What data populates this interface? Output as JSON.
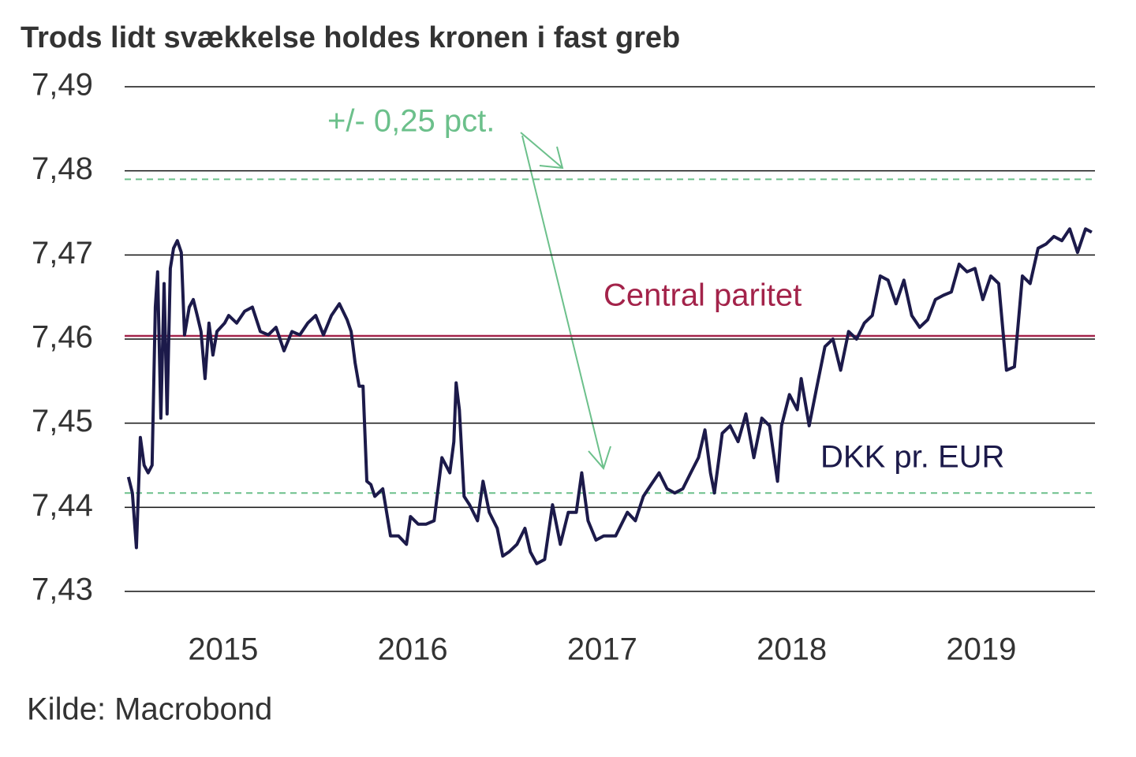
{
  "chart_data": {
    "type": "line",
    "title": "Trods lidt svækkelse holdes kronen i fast greb",
    "source": "Kilde: Macrobond",
    "annotations": [
      "+/- 0,25 pct.",
      "Central paritet"
    ],
    "xlim": [
      2014.48,
      2019.6
    ],
    "xticks": [
      2015,
      2016,
      2017,
      2018,
      2019
    ],
    "ylim": [
      7.43,
      7.49
    ],
    "yticks": [
      {
        "value": 7.43,
        "label": "7,43"
      },
      {
        "value": 7.44,
        "label": "7,44"
      },
      {
        "value": 7.45,
        "label": "7,45"
      },
      {
        "value": 7.46,
        "label": "7,46"
      },
      {
        "value": 7.47,
        "label": "7,47"
      },
      {
        "value": 7.48,
        "label": "7,48"
      },
      {
        "value": 7.49,
        "label": "7,49"
      }
    ],
    "grid": true,
    "reference_lines": [
      {
        "value": 7.46038,
        "color": "#a3234a",
        "style": "solid"
      },
      {
        "value": 7.479,
        "color": "#6cc08b",
        "style": "dashed"
      },
      {
        "value": 7.4417,
        "color": "#6cc08b",
        "style": "dashed"
      }
    ],
    "series": [
      {
        "name": "DKK pr. EUR",
        "color": "#1c1a4a",
        "x": [
          2014.5,
          2014.521,
          2014.542,
          2014.563,
          2014.583,
          2014.604,
          2014.625,
          2014.642,
          2014.654,
          2014.671,
          2014.688,
          2014.704,
          2014.721,
          2014.738,
          2014.758,
          2014.779,
          2014.796,
          2014.821,
          2014.842,
          2014.863,
          2014.883,
          2014.904,
          2014.925,
          2014.946,
          2014.967,
          2015.008,
          2015.029,
          2015.071,
          2015.113,
          2015.154,
          2015.196,
          2015.238,
          2015.279,
          2015.321,
          2015.363,
          2015.404,
          2015.446,
          2015.488,
          2015.529,
          2015.571,
          2015.613,
          2015.654,
          2015.675,
          2015.696,
          2015.717,
          2015.738,
          2015.758,
          2015.779,
          2015.8,
          2015.842,
          2015.883,
          2015.925,
          2015.967,
          2015.988,
          2016.029,
          2016.071,
          2016.113,
          2016.154,
          2016.196,
          2016.217,
          2016.229,
          2016.246,
          2016.271,
          2016.3,
          2016.342,
          2016.371,
          2016.404,
          2016.446,
          2016.475,
          2016.508,
          2016.55,
          2016.592,
          2016.621,
          2016.654,
          2016.696,
          2016.738,
          2016.779,
          2016.821,
          2016.863,
          2016.892,
          2016.925,
          2016.967,
          2017.008,
          2017.071,
          2017.133,
          2017.175,
          2017.217,
          2017.258,
          2017.3,
          2017.342,
          2017.383,
          2017.425,
          2017.467,
          2017.508,
          2017.542,
          2017.571,
          2017.592,
          2017.633,
          2017.675,
          2017.717,
          2017.758,
          2017.8,
          2017.842,
          2017.883,
          2017.925,
          2017.946,
          2017.988,
          2018.029,
          2018.05,
          2018.092,
          2018.133,
          2018.175,
          2018.217,
          2018.258,
          2018.3,
          2018.342,
          2018.383,
          2018.425,
          2018.467,
          2018.508,
          2018.55,
          2018.592,
          2018.633,
          2018.675,
          2018.717,
          2018.758,
          2018.8,
          2018.842,
          2018.883,
          2018.925,
          2018.967,
          2019.008,
          2019.05,
          2019.092,
          2019.133,
          2019.175,
          2019.217,
          2019.258,
          2019.3,
          2019.342,
          2019.383,
          2019.425,
          2019.467,
          2019.508,
          2019.55,
          2019.583
        ],
        "values": [
          7.4436,
          7.4417,
          7.4352,
          7.4483,
          7.445,
          7.4441,
          7.445,
          7.4638,
          7.468,
          7.4506,
          7.4666,
          7.4511,
          7.4684,
          7.4708,
          7.4717,
          7.4703,
          7.4605,
          7.4638,
          7.4647,
          7.4628,
          7.4609,
          7.4553,
          7.4619,
          7.4581,
          7.4609,
          7.4619,
          7.4628,
          7.4619,
          7.4633,
          7.4638,
          7.4609,
          7.4605,
          7.4614,
          7.4586,
          7.4609,
          7.4605,
          7.4619,
          7.4628,
          7.4605,
          7.4628,
          7.4642,
          7.4623,
          7.4609,
          7.4572,
          7.4544,
          7.4544,
          7.4431,
          7.4427,
          7.4413,
          7.4422,
          7.4366,
          7.4366,
          7.4356,
          7.4389,
          7.438,
          7.438,
          7.4384,
          7.4459,
          7.4441,
          7.4478,
          7.4548,
          7.4516,
          7.4413,
          7.4403,
          7.4384,
          7.4431,
          7.4394,
          7.4375,
          7.4342,
          7.4347,
          7.4356,
          7.4375,
          7.4347,
          7.4333,
          7.4338,
          7.4403,
          7.4356,
          7.4394,
          7.4394,
          7.4441,
          7.4384,
          7.4361,
          7.4366,
          7.4366,
          7.4394,
          7.4384,
          7.4413,
          7.4427,
          7.4441,
          7.4422,
          7.4417,
          7.4422,
          7.4441,
          7.4459,
          7.4492,
          7.4441,
          7.4417,
          7.4488,
          7.4497,
          7.4478,
          7.4511,
          7.4459,
          7.4506,
          7.4497,
          7.4431,
          7.4497,
          7.4534,
          7.4516,
          7.4553,
          7.4497,
          7.4544,
          7.4591,
          7.46,
          7.4563,
          7.4609,
          7.46,
          7.4619,
          7.4628,
          7.4675,
          7.467,
          7.4642,
          7.467,
          7.4628,
          7.4614,
          7.4623,
          7.4647,
          7.4652,
          7.4656,
          7.4689,
          7.468,
          7.4684,
          7.4647,
          7.4675,
          7.4666,
          7.4563,
          7.4567,
          7.4675,
          7.4666,
          7.4708,
          7.4713,
          7.4722,
          7.4717,
          7.4731,
          7.4703,
          7.4731,
          7.4727
        ]
      }
    ]
  }
}
